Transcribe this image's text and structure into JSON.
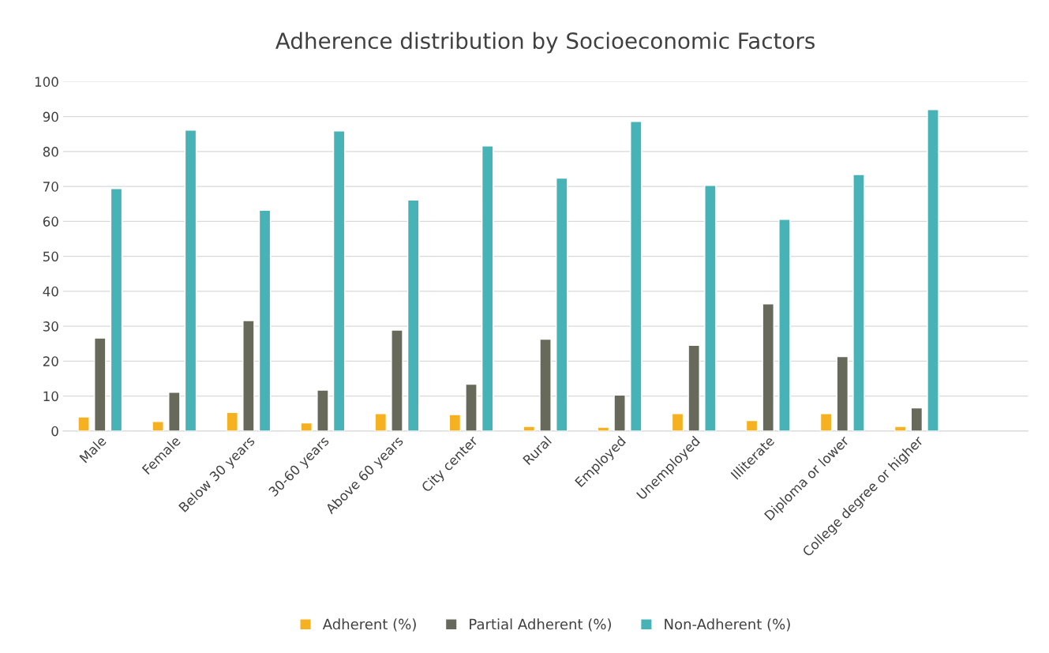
{
  "chart_data": {
    "type": "bar",
    "title": "Adherence distribution by Socioeconomic Factors",
    "categories": [
      "Male",
      "Female",
      "Below 30 years",
      "30-60 years",
      "Above 60 years",
      "City center",
      "Rural",
      "Employed",
      "Unemployed",
      "Illiterate",
      "Diploma or lower",
      "College degree or higher",
      null
    ],
    "series": [
      {
        "name": "Adherent (%)",
        "color": "#f5b120",
        "values": [
          4.0,
          2.7,
          5.3,
          2.3,
          5.0,
          4.7,
          1.3,
          1.1,
          5.0,
          3.0,
          5.0,
          1.3,
          null
        ]
      },
      {
        "name": "Partial Adherent (%)",
        "color": "#676a5a",
        "values": [
          26.6,
          11.1,
          31.6,
          11.7,
          28.9,
          13.4,
          26.3,
          10.3,
          24.5,
          36.4,
          21.3,
          6.6,
          null
        ]
      },
      {
        "name": "Non-Adherent (%)",
        "color": "#47b3b6",
        "values": [
          69.4,
          86.1,
          63.2,
          85.9,
          66.1,
          81.6,
          72.4,
          88.6,
          70.3,
          60.6,
          73.4,
          92.0,
          null
        ]
      }
    ],
    "ylim": [
      0,
      100
    ],
    "yticks": [
      0,
      10,
      20,
      30,
      40,
      50,
      60,
      70,
      80,
      90,
      100
    ],
    "grid": "y",
    "legend": "bottom"
  }
}
